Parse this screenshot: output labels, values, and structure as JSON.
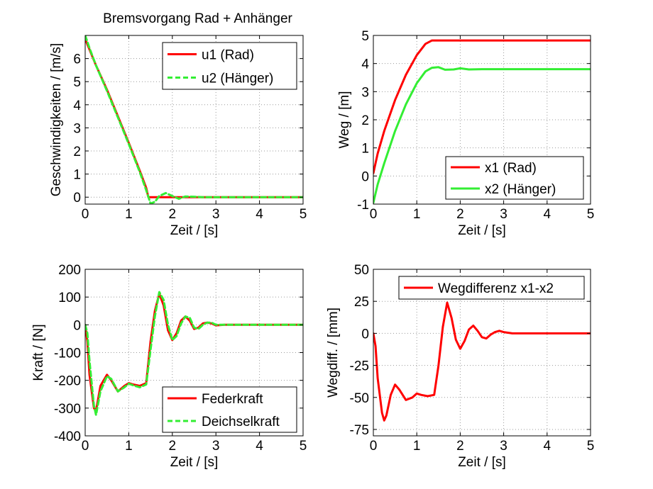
{
  "colors": {
    "red": "#ff0000",
    "green": "#33ee33",
    "axis": "#000000"
  },
  "chart_data": [
    {
      "type": "line",
      "title": "Bremsvorgang Rad + Anhänger",
      "xlabel": "Zeit / [s]",
      "ylabel": "Geschwindigkeiten / [m/s]",
      "xlim": [
        0,
        5
      ],
      "ylim": [
        -0.3,
        7
      ],
      "xticks": [
        0,
        1,
        2,
        3,
        4,
        5
      ],
      "xtick_labels": [
        "0",
        "1",
        "2",
        "3",
        "4",
        "5"
      ],
      "yticks": [
        0,
        1,
        2,
        3,
        4,
        5,
        6
      ],
      "ytick_labels": [
        "0",
        "1",
        "2",
        "3",
        "4",
        "5",
        "6"
      ],
      "legend_position": "top-right",
      "series": [
        {
          "name": "u1 (Rad)",
          "color": "red",
          "dash": false,
          "x": [
            0,
            0.25,
            0.5,
            0.75,
            1.0,
            1.25,
            1.4,
            1.45,
            2,
            3,
            4,
            5
          ],
          "y": [
            6.85,
            5.7,
            4.65,
            3.5,
            2.35,
            1.15,
            0.4,
            0,
            0,
            0,
            0,
            0
          ]
        },
        {
          "name": "u2 (Hänger)",
          "color": "green",
          "dash": true,
          "x": [
            0,
            0.1,
            0.25,
            0.5,
            0.75,
            1.0,
            1.25,
            1.4,
            1.5,
            1.6,
            1.7,
            1.85,
            2.0,
            2.15,
            2.3,
            2.5,
            2.7,
            3,
            4,
            5
          ],
          "y": [
            7.0,
            6.45,
            5.7,
            4.6,
            3.45,
            2.3,
            1.1,
            0.3,
            -0.28,
            -0.2,
            0.05,
            0.18,
            0.05,
            -0.07,
            0.03,
            0.02,
            0,
            0,
            0,
            0
          ]
        }
      ]
    },
    {
      "type": "line",
      "title": "",
      "xlabel": "Zeit / [s]",
      "ylabel": "Weg / [m]",
      "xlim": [
        0,
        5
      ],
      "ylim": [
        -1,
        5
      ],
      "xticks": [
        0,
        1,
        2,
        3,
        4,
        5
      ],
      "xtick_labels": [
        "0",
        "1",
        "2",
        "3",
        "4",
        "5"
      ],
      "yticks": [
        -1,
        0,
        1,
        2,
        3,
        4,
        5
      ],
      "ytick_labels": [
        "-1",
        "0",
        "1",
        "2",
        "3",
        "4",
        "5"
      ],
      "legend_position": "bottom-right",
      "series": [
        {
          "name": "x1 (Rad)",
          "color": "red",
          "dash": false,
          "x": [
            0,
            0.1,
            0.25,
            0.5,
            0.75,
            1.0,
            1.2,
            1.35,
            1.45,
            2,
            3,
            4,
            5
          ],
          "y": [
            0.1,
            0.8,
            1.6,
            2.7,
            3.6,
            4.3,
            4.7,
            4.82,
            4.82,
            4.82,
            4.82,
            4.82,
            4.82
          ]
        },
        {
          "name": "x2 (Hänger)",
          "color": "green",
          "dash": false,
          "x": [
            0,
            0.1,
            0.25,
            0.5,
            0.75,
            1.0,
            1.2,
            1.35,
            1.5,
            1.65,
            1.85,
            2.0,
            2.2,
            2.5,
            3,
            4,
            5
          ],
          "y": [
            -0.95,
            -0.3,
            0.45,
            1.6,
            2.55,
            3.3,
            3.72,
            3.85,
            3.87,
            3.78,
            3.79,
            3.83,
            3.79,
            3.8,
            3.8,
            3.8,
            3.8
          ]
        }
      ]
    },
    {
      "type": "line",
      "title": "",
      "xlabel": "Zeit / [s]",
      "ylabel": "Kraft / [N]",
      "xlim": [
        0,
        5
      ],
      "ylim": [
        -400,
        200
      ],
      "xticks": [
        0,
        1,
        2,
        3,
        4,
        5
      ],
      "xtick_labels": [
        "0",
        "1",
        "2",
        "3",
        "4",
        "5"
      ],
      "yticks": [
        -400,
        -300,
        -200,
        -100,
        0,
        100,
        200
      ],
      "ytick_labels": [
        "-400",
        "-300",
        "-200",
        "-100",
        "0",
        "100",
        "200"
      ],
      "legend_position": "bottom-right",
      "series": [
        {
          "name": "Federkraft",
          "color": "red",
          "dash": false,
          "x": [
            0,
            0.05,
            0.1,
            0.2,
            0.25,
            0.35,
            0.5,
            0.6,
            0.75,
            0.9,
            1.0,
            1.1,
            1.25,
            1.4,
            1.5,
            1.6,
            1.7,
            1.8,
            1.9,
            2.0,
            2.1,
            2.2,
            2.3,
            2.4,
            2.5,
            2.6,
            2.7,
            2.8,
            2.9,
            3.0,
            3.2,
            3.5,
            4,
            5
          ],
          "y": [
            0,
            -60,
            -180,
            -300,
            -310,
            -220,
            -180,
            -200,
            -240,
            -220,
            -210,
            -215,
            -220,
            -210,
            -60,
            50,
            112,
            70,
            -20,
            -55,
            -30,
            15,
            30,
            15,
            -15,
            -10,
            5,
            8,
            5,
            -2,
            0,
            0,
            0,
            0
          ]
        },
        {
          "name": "Deichselkraft",
          "color": "green",
          "dash": true,
          "x": [
            0,
            0.05,
            0.1,
            0.2,
            0.25,
            0.35,
            0.5,
            0.6,
            0.75,
            0.9,
            1.0,
            1.1,
            1.25,
            1.4,
            1.5,
            1.6,
            1.7,
            1.8,
            1.9,
            2.0,
            2.1,
            2.2,
            2.3,
            2.4,
            2.5,
            2.6,
            2.7,
            2.8,
            2.9,
            3.0,
            3.2,
            3.5,
            4,
            5
          ],
          "y": [
            0,
            -30,
            -130,
            -290,
            -325,
            -240,
            -185,
            -195,
            -240,
            -225,
            -212,
            -218,
            -225,
            -215,
            -90,
            30,
            118,
            90,
            0,
            -55,
            -40,
            5,
            30,
            25,
            -10,
            -15,
            0,
            8,
            8,
            0,
            0,
            0,
            0,
            0
          ]
        }
      ]
    },
    {
      "type": "line",
      "title": "",
      "xlabel": "Zeit / [s]",
      "ylabel": "Wegdiff. / [mm]",
      "xlim": [
        0,
        5
      ],
      "ylim": [
        -80,
        50
      ],
      "xticks": [
        0,
        1,
        2,
        3,
        4,
        5
      ],
      "xtick_labels": [
        "0",
        "1",
        "2",
        "3",
        "4",
        "5"
      ],
      "yticks": [
        -75,
        -50,
        -25,
        0,
        25,
        50
      ],
      "ytick_labels": [
        "-75",
        "-50",
        "-25",
        "0",
        "25",
        "50"
      ],
      "legend_position": "top-right",
      "series": [
        {
          "name": "Wegdifferenz x1-x2",
          "color": "red",
          "dash": false,
          "x": [
            0,
            0.05,
            0.1,
            0.2,
            0.25,
            0.3,
            0.4,
            0.5,
            0.6,
            0.75,
            0.9,
            1.0,
            1.1,
            1.25,
            1.4,
            1.5,
            1.6,
            1.7,
            1.8,
            1.9,
            2.0,
            2.1,
            2.2,
            2.3,
            2.4,
            2.5,
            2.6,
            2.7,
            2.8,
            2.9,
            3.0,
            3.2,
            3.5,
            4,
            5
          ],
          "y": [
            0,
            -10,
            -35,
            -62,
            -68,
            -64,
            -48,
            -40,
            -44,
            -52,
            -50,
            -47,
            -48,
            -49,
            -48,
            -25,
            5,
            24,
            12,
            -5,
            -12,
            -6,
            3,
            6,
            2,
            -3,
            -4,
            -1,
            1,
            2,
            1,
            0,
            0,
            0,
            0
          ]
        }
      ]
    }
  ]
}
